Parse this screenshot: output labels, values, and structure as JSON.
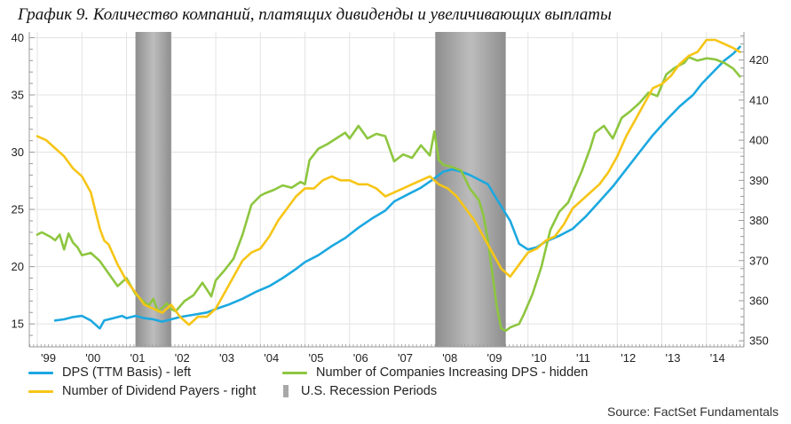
{
  "chart_data": {
    "type": "line",
    "title": "График 9. Количество компаний, платящих дивиденды и увеличивающих выплаты",
    "source": "Source: FactSet Fundamentals",
    "x_ticks": [
      "'99",
      "'00",
      "'01",
      "'02",
      "'03",
      "'04",
      "'05",
      "'06",
      "'07",
      "'08",
      "'09",
      "'10",
      "'11",
      "'12",
      "'13",
      "'14"
    ],
    "y_left": {
      "ylim": [
        13,
        40.5
      ],
      "ticks": [
        15,
        20,
        25,
        30,
        35,
        40
      ]
    },
    "y_right": {
      "ylim": [
        348.5,
        427
      ],
      "ticks": [
        350,
        360,
        370,
        380,
        390,
        400,
        410,
        420
      ]
    },
    "recessions": [
      {
        "start": 2001.2,
        "end": 2002.0
      },
      {
        "start": 2007.92,
        "end": 2009.5
      }
    ],
    "legend": [
      {
        "label": "DPS (TTM Basis) - left",
        "color": "#1ca8e0",
        "kind": "line"
      },
      {
        "label": "Number of Companies Increasing DPS - hidden",
        "color": "#8dc63f",
        "kind": "line"
      },
      {
        "label": "Number of Dividend Payers - right",
        "color": "#f6c516",
        "kind": "line"
      },
      {
        "label": "U.S. Recession Periods",
        "color": "#a8a8a8",
        "kind": "box"
      }
    ],
    "series": [
      {
        "name": "DPS (TTM Basis) - left",
        "axis": "left",
        "color": "#1ca8e0",
        "x": [
          1999.4,
          1999.6,
          1999.8,
          2000.0,
          2000.2,
          2000.4,
          2000.5,
          2000.7,
          2000.9,
          2001.0,
          2001.2,
          2001.4,
          2001.6,
          2001.8,
          2002.0,
          2002.2,
          2002.5,
          2002.8,
          2003.0,
          2003.3,
          2003.6,
          2003.9,
          2004.2,
          2004.5,
          2004.8,
          2005.0,
          2005.3,
          2005.6,
          2005.9,
          2006.2,
          2006.5,
          2006.8,
          2007.0,
          2007.3,
          2007.6,
          2007.9,
          2008.1,
          2008.3,
          2008.5,
          2008.7,
          2008.9,
          2009.1,
          2009.3,
          2009.6,
          2009.8,
          2010.0,
          2010.2,
          2010.4,
          2010.7,
          2011.0,
          2011.3,
          2011.6,
          2011.9,
          2012.2,
          2012.5,
          2012.8,
          2013.1,
          2013.4,
          2013.7,
          2013.9,
          2014.2,
          2014.4,
          2014.6,
          2014.75
        ],
        "values": [
          15.3,
          15.4,
          15.6,
          15.7,
          15.3,
          14.6,
          15.3,
          15.5,
          15.7,
          15.5,
          15.7,
          15.5,
          15.4,
          15.2,
          15.4,
          15.6,
          15.8,
          16.0,
          16.3,
          16.7,
          17.2,
          17.8,
          18.3,
          19.0,
          19.8,
          20.4,
          21.0,
          21.8,
          22.5,
          23.4,
          24.2,
          24.9,
          25.7,
          26.3,
          26.9,
          27.7,
          28.3,
          28.5,
          28.3,
          28.0,
          27.6,
          27.2,
          25.9,
          24.0,
          22.0,
          21.5,
          21.7,
          22.2,
          22.7,
          23.3,
          24.4,
          25.7,
          27.0,
          28.5,
          30.0,
          31.5,
          32.8,
          34.0,
          35.0,
          36.0,
          37.2,
          38.0,
          38.6,
          39.2
        ]
      },
      {
        "name": "Number of Companies Increasing DPS - hidden",
        "axis": "left",
        "color": "#8dc63f",
        "x": [
          1999.0,
          1999.1,
          1999.3,
          1999.4,
          1999.5,
          1999.6,
          1999.7,
          1999.8,
          1999.9,
          2000.0,
          2000.2,
          2000.4,
          2000.6,
          2000.8,
          2001.0,
          2001.2,
          2001.4,
          2001.5,
          2001.6,
          2001.7,
          2001.8,
          2001.9,
          2002.0,
          2002.1,
          2002.3,
          2002.5,
          2002.7,
          2002.9,
          2003.0,
          2003.2,
          2003.4,
          2003.6,
          2003.8,
          2004.0,
          2004.1,
          2004.3,
          2004.5,
          2004.7,
          2004.9,
          2005.0,
          2005.1,
          2005.3,
          2005.5,
          2005.7,
          2005.9,
          2006.0,
          2006.2,
          2006.4,
          2006.6,
          2006.8,
          2007.0,
          2007.2,
          2007.4,
          2007.6,
          2007.8,
          2007.9,
          2008.0,
          2008.1,
          2008.3,
          2008.5,
          2008.7,
          2008.9,
          2009.0,
          2009.1,
          2009.2,
          2009.3,
          2009.4,
          2009.5,
          2009.6,
          2009.8,
          2009.9,
          2010.1,
          2010.3,
          2010.5,
          2010.7,
          2010.9,
          2011.0,
          2011.2,
          2011.4,
          2011.5,
          2011.7,
          2011.9,
          2012.1,
          2012.3,
          2012.5,
          2012.7,
          2012.9,
          2013.1,
          2013.3,
          2013.5,
          2013.6,
          2013.8,
          2014.0,
          2014.2,
          2014.4,
          2014.6,
          2014.75
        ],
        "values": [
          22.8,
          23.0,
          22.6,
          22.3,
          22.8,
          21.5,
          22.9,
          22.1,
          21.7,
          21.0,
          21.2,
          20.5,
          19.4,
          18.3,
          19.0,
          17.6,
          16.9,
          16.6,
          17.2,
          16.1,
          16.4,
          16.8,
          16.3,
          16.1,
          17.0,
          17.5,
          18.6,
          17.4,
          18.8,
          19.7,
          20.7,
          22.8,
          25.4,
          26.2,
          26.4,
          26.7,
          27.1,
          26.9,
          27.4,
          27.2,
          29.3,
          30.3,
          30.7,
          31.2,
          31.7,
          31.2,
          32.3,
          31.2,
          31.6,
          31.4,
          29.2,
          29.8,
          29.5,
          30.6,
          29.7,
          31.8,
          29.3,
          28.9,
          28.7,
          28.4,
          26.8,
          25.8,
          24.5,
          22.3,
          19.4,
          16.5,
          14.6,
          14.4,
          14.7,
          15.0,
          15.8,
          17.6,
          20.0,
          23.2,
          24.8,
          25.6,
          26.5,
          28.3,
          30.4,
          31.7,
          32.3,
          31.2,
          33.0,
          33.6,
          34.3,
          35.2,
          34.9,
          36.8,
          37.4,
          37.8,
          38.3,
          38.0,
          38.2,
          38.1,
          37.8,
          37.3,
          36.6
        ]
      },
      {
        "name": "Number of Dividend Payers - right",
        "axis": "right",
        "color": "#f6c516",
        "x": [
          1999.0,
          1999.2,
          1999.4,
          1999.6,
          1999.8,
          2000.0,
          2000.2,
          2000.4,
          2000.5,
          2000.6,
          2000.8,
          2001.0,
          2001.2,
          2001.4,
          2001.6,
          2001.8,
          2002.0,
          2002.2,
          2002.4,
          2002.6,
          2002.8,
          2003.0,
          2003.2,
          2003.4,
          2003.6,
          2003.8,
          2004.0,
          2004.2,
          2004.4,
          2004.6,
          2004.8,
          2005.0,
          2005.2,
          2005.4,
          2005.6,
          2005.8,
          2006.0,
          2006.2,
          2006.4,
          2006.6,
          2006.8,
          2007.0,
          2007.2,
          2007.4,
          2007.6,
          2007.8,
          2008.0,
          2008.2,
          2008.4,
          2008.6,
          2008.8,
          2009.0,
          2009.2,
          2009.4,
          2009.6,
          2009.8,
          2010.0,
          2010.2,
          2010.4,
          2010.6,
          2010.8,
          2011.0,
          2011.2,
          2011.4,
          2011.6,
          2011.8,
          2012.0,
          2012.2,
          2012.4,
          2012.6,
          2012.8,
          2013.0,
          2013.2,
          2013.4,
          2013.6,
          2013.8,
          2014.0,
          2014.2,
          2014.4,
          2014.6,
          2014.75
        ],
        "values": [
          401,
          400,
          398,
          396,
          393,
          391,
          387,
          378,
          375,
          374,
          369,
          365,
          362,
          359,
          358,
          357,
          359,
          356,
          354,
          356,
          356,
          358,
          362,
          366,
          370,
          372,
          373,
          376,
          380,
          383,
          386,
          388,
          388,
          390,
          391,
          390,
          390,
          389,
          389,
          388,
          386,
          387,
          388,
          389,
          390,
          391,
          389,
          388,
          386,
          383,
          380,
          376,
          372,
          368,
          366,
          369,
          372,
          373,
          375,
          376,
          379,
          383,
          385,
          387,
          389,
          392,
          396,
          401,
          405,
          409,
          413,
          414,
          416,
          419,
          421,
          422,
          425,
          425,
          424,
          423,
          422
        ]
      }
    ]
  }
}
